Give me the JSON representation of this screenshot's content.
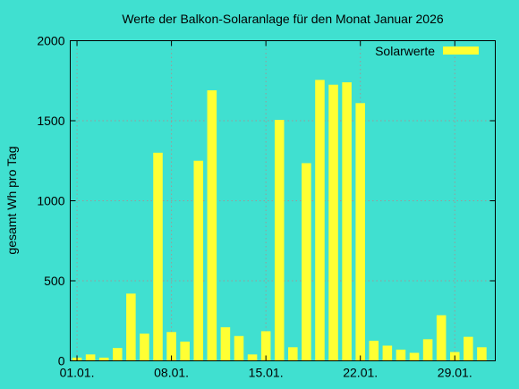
{
  "colors": {
    "background": "#40e0d0",
    "bar": "#ffff33",
    "axis": "#000000",
    "grid": "#9a9a9a"
  },
  "chart_data": {
    "type": "bar",
    "title": "Werte der Balkon-Solaranlage für den Monat Januar 2026",
    "xlabel": "",
    "ylabel": "gesamt Wh pro Tag",
    "ylim": [
      0,
      2000
    ],
    "yticks": [
      "0",
      "500",
      "1000",
      "1500",
      "2000"
    ],
    "xticks": [
      {
        "label": "01.01.",
        "day": 1
      },
      {
        "label": "08.01.",
        "day": 8
      },
      {
        "label": "15.01.",
        "day": 15
      },
      {
        "label": "22.01.",
        "day": 22
      },
      {
        "label": "29.01.",
        "day": 29
      }
    ],
    "grid": true,
    "legend_position": "top-right",
    "series": [
      {
        "name": "Solarwerte",
        "x": [
          1,
          2,
          3,
          4,
          5,
          6,
          7,
          8,
          9,
          10,
          11,
          12,
          13,
          14,
          15,
          16,
          17,
          18,
          19,
          20,
          21,
          22,
          23,
          24,
          25,
          26,
          27,
          28,
          29,
          30,
          31
        ],
        "values": [
          20,
          40,
          20,
          80,
          420,
          170,
          1300,
          180,
          120,
          1250,
          1690,
          210,
          155,
          40,
          185,
          1505,
          85,
          1235,
          1755,
          1725,
          1740,
          1610,
          125,
          95,
          70,
          50,
          135,
          285,
          55,
          150,
          85
        ]
      }
    ]
  }
}
